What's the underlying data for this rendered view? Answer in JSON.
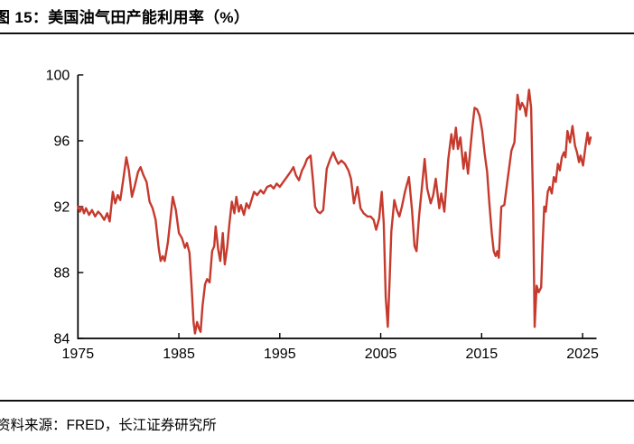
{
  "figure": {
    "title": "图 15：美国油气田产能利用率（%）",
    "source": "资料来源：FRED，长江证券研究所"
  },
  "chart_data": {
    "type": "line",
    "title": "美国油气田产能利用率（%）",
    "xlabel": "",
    "ylabel": "",
    "x_ticks": [
      1975,
      1985,
      1995,
      2005,
      2015,
      2025
    ],
    "y_ticks": [
      84,
      88,
      92,
      96,
      100
    ],
    "xlim": [
      1975,
      2026.4
    ],
    "ylim": [
      84,
      100
    ],
    "grid": false,
    "legend": false,
    "axis_color": "#000000",
    "tick_direction": "in",
    "series": [
      {
        "name": "美国油气田产能利用率",
        "color": "#c63a2d",
        "points": [
          [
            1975.0,
            92.0
          ],
          [
            1975.2,
            91.7
          ],
          [
            1975.4,
            92.0
          ],
          [
            1975.6,
            91.6
          ],
          [
            1975.8,
            91.9
          ],
          [
            1976.1,
            91.5
          ],
          [
            1976.4,
            91.8
          ],
          [
            1976.7,
            91.4
          ],
          [
            1977.0,
            91.7
          ],
          [
            1977.3,
            91.5
          ],
          [
            1977.6,
            91.2
          ],
          [
            1977.9,
            91.6
          ],
          [
            1978.15,
            91.1
          ],
          [
            1978.45,
            92.9
          ],
          [
            1978.7,
            92.2
          ],
          [
            1978.95,
            92.7
          ],
          [
            1979.2,
            92.4
          ],
          [
            1979.5,
            93.7
          ],
          [
            1979.8,
            95.0
          ],
          [
            1980.05,
            94.2
          ],
          [
            1980.35,
            92.6
          ],
          [
            1980.65,
            93.3
          ],
          [
            1980.95,
            94.1
          ],
          [
            1981.2,
            94.4
          ],
          [
            1981.5,
            93.9
          ],
          [
            1981.8,
            93.5
          ],
          [
            1982.1,
            92.3
          ],
          [
            1982.4,
            91.9
          ],
          [
            1982.7,
            91.2
          ],
          [
            1983.0,
            89.5
          ],
          [
            1983.2,
            88.7
          ],
          [
            1983.4,
            89.0
          ],
          [
            1983.6,
            88.7
          ],
          [
            1983.9,
            89.8
          ],
          [
            1984.15,
            91.2
          ],
          [
            1984.4,
            92.6
          ],
          [
            1984.7,
            91.8
          ],
          [
            1985.0,
            90.4
          ],
          [
            1985.3,
            90.1
          ],
          [
            1985.6,
            89.5
          ],
          [
            1985.8,
            89.8
          ],
          [
            1986.05,
            89.2
          ],
          [
            1986.25,
            87.3
          ],
          [
            1986.45,
            85.0
          ],
          [
            1986.6,
            84.3
          ],
          [
            1986.8,
            85.0
          ],
          [
            1987.0,
            84.6
          ],
          [
            1987.15,
            84.4
          ],
          [
            1987.35,
            86.0
          ],
          [
            1987.6,
            87.3
          ],
          [
            1987.8,
            87.6
          ],
          [
            1988.05,
            87.4
          ],
          [
            1988.3,
            89.3
          ],
          [
            1988.5,
            89.6
          ],
          [
            1988.65,
            90.8
          ],
          [
            1988.9,
            89.4
          ],
          [
            1989.1,
            88.7
          ],
          [
            1989.35,
            90.4
          ],
          [
            1989.55,
            88.5
          ],
          [
            1989.8,
            89.6
          ],
          [
            1990.0,
            90.9
          ],
          [
            1990.25,
            92.3
          ],
          [
            1990.5,
            91.6
          ],
          [
            1990.7,
            92.6
          ],
          [
            1990.95,
            91.7
          ],
          [
            1991.15,
            92.1
          ],
          [
            1991.45,
            91.5
          ],
          [
            1991.7,
            92.2
          ],
          [
            1991.95,
            91.9
          ],
          [
            1992.2,
            92.4
          ],
          [
            1992.45,
            92.9
          ],
          [
            1992.75,
            92.7
          ],
          [
            1993.1,
            93.0
          ],
          [
            1993.4,
            92.8
          ],
          [
            1993.75,
            93.2
          ],
          [
            1994.1,
            93.3
          ],
          [
            1994.4,
            93.1
          ],
          [
            1994.7,
            93.4
          ],
          [
            1995.0,
            93.2
          ],
          [
            1995.35,
            93.5
          ],
          [
            1995.7,
            93.8
          ],
          [
            1996.05,
            94.1
          ],
          [
            1996.35,
            94.4
          ],
          [
            1996.6,
            93.9
          ],
          [
            1996.9,
            93.6
          ],
          [
            1997.2,
            94.2
          ],
          [
            1997.45,
            94.5
          ],
          [
            1997.7,
            94.9
          ],
          [
            1998.05,
            95.1
          ],
          [
            1998.3,
            93.5
          ],
          [
            1998.5,
            92.0
          ],
          [
            1998.75,
            91.7
          ],
          [
            1999.0,
            91.6
          ],
          [
            1999.3,
            91.8
          ],
          [
            1999.65,
            94.3
          ],
          [
            2000.0,
            94.9
          ],
          [
            2000.3,
            95.3
          ],
          [
            2000.55,
            94.9
          ],
          [
            2000.8,
            94.6
          ],
          [
            2001.1,
            94.8
          ],
          [
            2001.45,
            94.6
          ],
          [
            2001.8,
            94.2
          ],
          [
            2002.05,
            93.7
          ],
          [
            2002.35,
            92.2
          ],
          [
            2002.7,
            93.2
          ],
          [
            2003.0,
            91.9
          ],
          [
            2003.3,
            91.6
          ],
          [
            2003.7,
            91.4
          ],
          [
            2004.0,
            91.4
          ],
          [
            2004.3,
            91.2
          ],
          [
            2004.55,
            90.6
          ],
          [
            2004.85,
            91.3
          ],
          [
            2005.1,
            92.9
          ],
          [
            2005.3,
            91.0
          ],
          [
            2005.5,
            86.5
          ],
          [
            2005.7,
            84.7
          ],
          [
            2005.9,
            87.8
          ],
          [
            2006.05,
            90.5
          ],
          [
            2006.35,
            92.4
          ],
          [
            2006.6,
            91.8
          ],
          [
            2006.85,
            91.4
          ],
          [
            2007.1,
            92.0
          ],
          [
            2007.4,
            92.9
          ],
          [
            2007.8,
            93.8
          ],
          [
            2008.1,
            91.8
          ],
          [
            2008.35,
            89.6
          ],
          [
            2008.55,
            89.3
          ],
          [
            2008.8,
            91.4
          ],
          [
            2009.1,
            93.3
          ],
          [
            2009.35,
            94.9
          ],
          [
            2009.6,
            93.1
          ],
          [
            2009.95,
            92.2
          ],
          [
            2010.2,
            92.7
          ],
          [
            2010.45,
            93.7
          ],
          [
            2010.8,
            91.9
          ],
          [
            2011.0,
            92.8
          ],
          [
            2011.3,
            91.7
          ],
          [
            2011.7,
            94.9
          ],
          [
            2012.0,
            96.4
          ],
          [
            2012.2,
            95.5
          ],
          [
            2012.45,
            96.8
          ],
          [
            2012.65,
            95.5
          ],
          [
            2012.9,
            96.2
          ],
          [
            2013.2,
            94.3
          ],
          [
            2013.4,
            95.3
          ],
          [
            2013.65,
            94.0
          ],
          [
            2014.1,
            96.9
          ],
          [
            2014.3,
            98.0
          ],
          [
            2014.55,
            97.9
          ],
          [
            2014.8,
            97.5
          ],
          [
            2015.05,
            96.6
          ],
          [
            2015.3,
            95.2
          ],
          [
            2015.55,
            94.1
          ],
          [
            2015.75,
            92.3
          ],
          [
            2016.0,
            90.4
          ],
          [
            2016.2,
            89.3
          ],
          [
            2016.4,
            89.0
          ],
          [
            2016.55,
            89.3
          ],
          [
            2016.7,
            88.9
          ],
          [
            2016.95,
            92.0
          ],
          [
            2017.25,
            92.1
          ],
          [
            2017.6,
            93.8
          ],
          [
            2017.95,
            95.4
          ],
          [
            2018.25,
            95.9
          ],
          [
            2018.55,
            98.8
          ],
          [
            2018.8,
            97.9
          ],
          [
            2019.0,
            98.3
          ],
          [
            2019.25,
            98.0
          ],
          [
            2019.4,
            97.5
          ],
          [
            2019.7,
            99.1
          ],
          [
            2019.9,
            98.0
          ],
          [
            2020.1,
            92.0
          ],
          [
            2020.25,
            84.7
          ],
          [
            2020.45,
            87.2
          ],
          [
            2020.65,
            86.8
          ],
          [
            2020.9,
            87.1
          ],
          [
            2021.05,
            89.8
          ],
          [
            2021.2,
            92.0
          ],
          [
            2021.35,
            91.7
          ],
          [
            2021.55,
            92.9
          ],
          [
            2021.75,
            93.2
          ],
          [
            2021.95,
            92.8
          ],
          [
            2022.15,
            93.8
          ],
          [
            2022.35,
            93.5
          ],
          [
            2022.55,
            94.6
          ],
          [
            2022.75,
            94.2
          ],
          [
            2022.95,
            95.0
          ],
          [
            2023.15,
            95.3
          ],
          [
            2023.3,
            95.0
          ],
          [
            2023.5,
            96.6
          ],
          [
            2023.75,
            95.9
          ],
          [
            2024.0,
            96.9
          ],
          [
            2024.25,
            95.7
          ],
          [
            2024.45,
            95.3
          ],
          [
            2024.65,
            94.7
          ],
          [
            2024.8,
            95.1
          ],
          [
            2025.05,
            94.5
          ],
          [
            2025.3,
            95.7
          ],
          [
            2025.5,
            96.5
          ],
          [
            2025.65,
            95.8
          ],
          [
            2025.8,
            96.2
          ]
        ]
      }
    ]
  }
}
